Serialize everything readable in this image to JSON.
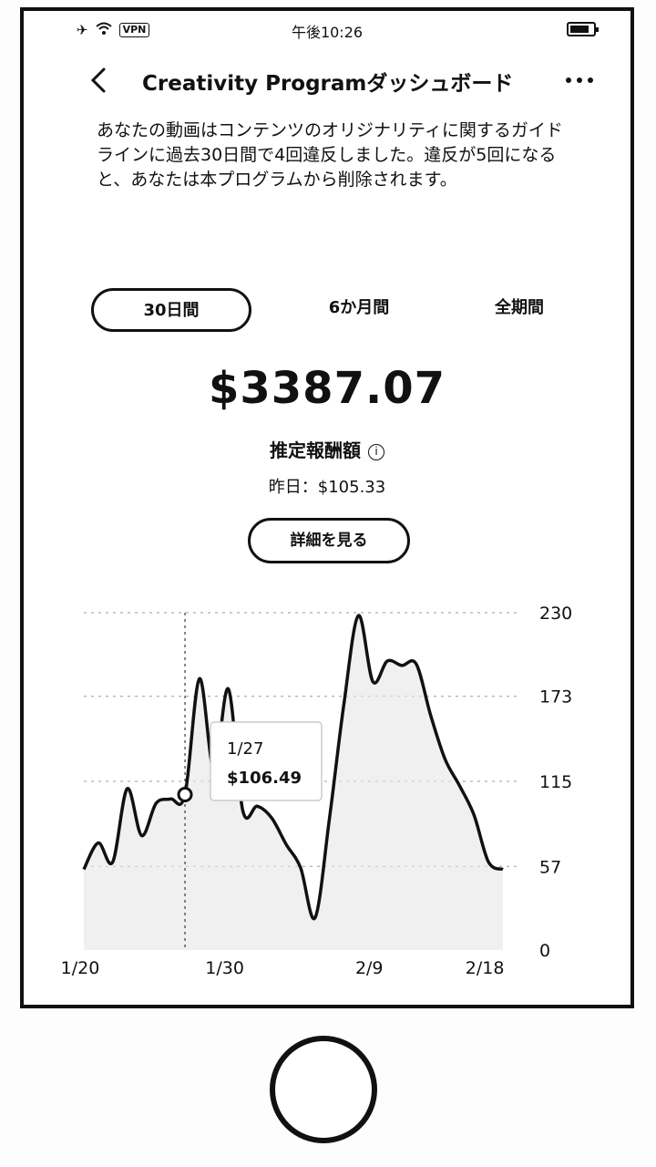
{
  "status_bar": {
    "vpn": "VPN",
    "time": "午後10:26",
    "icons": [
      "airplane-icon",
      "wifi-icon",
      "battery-icon"
    ]
  },
  "nav": {
    "back_icon": "chevron-left-icon",
    "title": "Creativity Programダッシュボード",
    "more_icon": "more-icon"
  },
  "notice": "あなたの動画はコンテンツのオリジナリティに関するガイドラインに過去30日間で4回違反しました。違反が5回になると、あなたは本プログラムから削除されます。",
  "tabs": [
    {
      "label": "30日間",
      "active": true
    },
    {
      "label": "6か月間",
      "active": false
    },
    {
      "label": "全期間",
      "active": false
    }
  ],
  "earnings": {
    "amount": "$3387.07",
    "label": "推定報酬額",
    "info_icon": "info-icon",
    "yesterday": "昨日：$105.33",
    "details_button": "詳細を見る"
  },
  "chart_data": {
    "type": "line",
    "x_ticks": [
      "1/20",
      "1/30",
      "2/9",
      "2/18"
    ],
    "y_ticks": [
      "230",
      "173",
      "115",
      "57",
      "0"
    ],
    "ylim": [
      0,
      230
    ],
    "grid": "horizontal dashed",
    "x": [
      "1/20",
      "1/21",
      "1/22",
      "1/23",
      "1/24",
      "1/25",
      "1/26",
      "1/27",
      "1/28",
      "1/29",
      "1/30",
      "1/31",
      "2/1",
      "2/2",
      "2/3",
      "2/4",
      "2/5",
      "2/6",
      "2/7",
      "2/8",
      "2/9",
      "2/10",
      "2/11",
      "2/12",
      "2/13",
      "2/14",
      "2/15",
      "2/16",
      "2/17",
      "2/18"
    ],
    "values": [
      55,
      73,
      60,
      110,
      78,
      100,
      103,
      106,
      185,
      123,
      178,
      95,
      98,
      90,
      72,
      56,
      22,
      90,
      168,
      228,
      183,
      197,
      194,
      195,
      160,
      130,
      112,
      92,
      60,
      55
    ],
    "tooltip": {
      "date": "1/27",
      "value": "$106.49"
    }
  }
}
